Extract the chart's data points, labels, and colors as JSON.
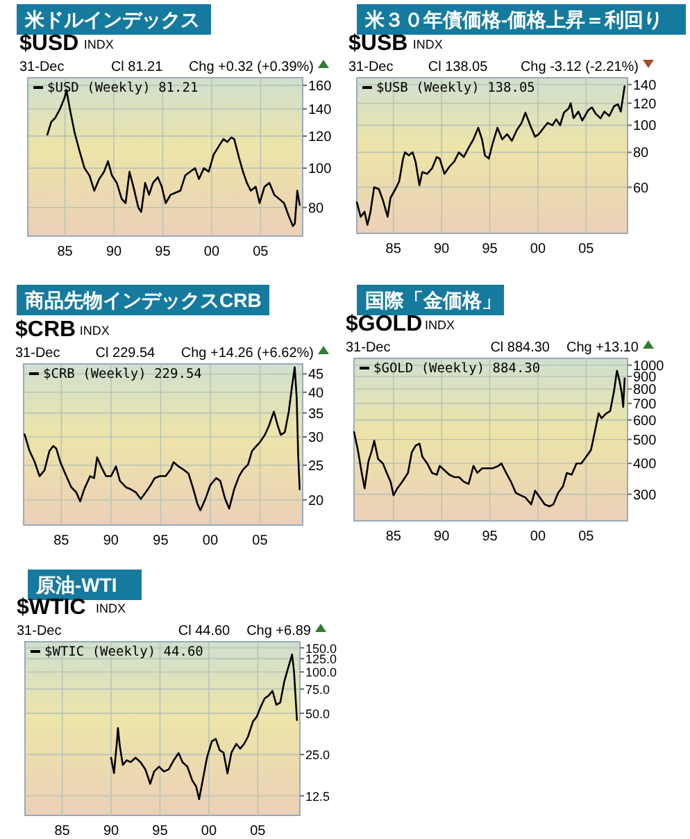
{
  "chart_data": [
    {
      "type": "line",
      "title": "米ドルインデックス",
      "annotations": [
        "$USD",
        "INDX",
        "31-Dec",
        "Cl 81.21",
        "Chg +0.32 (+0.39%)"
      ],
      "log": "y",
      "grid": true,
      "legend": "top left",
      "xlim": [
        1981.2,
        2009.3
      ],
      "xticks": [
        {
          "value": 1985,
          "label": "85"
        },
        {
          "value": 1990,
          "label": "90"
        },
        {
          "value": 1995,
          "label": "95"
        },
        {
          "value": 2000,
          "label": "00"
        },
        {
          "value": 2005,
          "label": "05"
        }
      ],
      "ylim": [
        68,
        167
      ],
      "yticks": [
        80,
        100,
        120,
        140,
        160
      ],
      "series": [
        {
          "name": "$USD (Weekly) 81.21",
          "color": "#000000",
          "x": [
            1983.2,
            1983.6,
            1984.0,
            1984.5,
            1985.0,
            1985.15,
            1985.5,
            1986.0,
            1986.5,
            1987.0,
            1987.5,
            1988.0,
            1988.5,
            1989.0,
            1989.4,
            1989.8,
            1990.3,
            1990.8,
            1991.2,
            1991.6,
            1992.0,
            1992.5,
            1992.8,
            1993.2,
            1993.6,
            1994.0,
            1994.5,
            1994.9,
            1995.3,
            1995.8,
            1996.3,
            1996.8,
            1997.3,
            1997.8,
            1998.3,
            1998.7,
            1999.2,
            1999.7,
            2000.2,
            2000.8,
            2001.2,
            2001.6,
            2002.0,
            2002.3,
            2002.8,
            2003.2,
            2003.6,
            2004.0,
            2004.5,
            2004.9,
            2005.4,
            2005.9,
            2006.4,
            2006.9,
            2007.4,
            2007.9,
            2008.3,
            2008.5,
            2008.75,
            2009.0
          ],
          "values": [
            121,
            130,
            133,
            140,
            150,
            156,
            140,
            122,
            110,
            100,
            96,
            88,
            94,
            98,
            104,
            96,
            92,
            84,
            82,
            98,
            90,
            80,
            78,
            92,
            86,
            92,
            95,
            90,
            82,
            86,
            87,
            88,
            96,
            98,
            100,
            94,
            100,
            98,
            108,
            114,
            118,
            116,
            119,
            118,
            106,
            98,
            92,
            88,
            90,
            82,
            90,
            92,
            86,
            84,
            82,
            76,
            72,
            73,
            88,
            81.21
          ]
        }
      ]
    },
    {
      "type": "line",
      "title": "米３０年債価格-価格上昇＝利回り",
      "annotations": [
        "$USB",
        "INDX",
        "31-Dec",
        "Cl 138.05",
        "Chg -3.12 (-2.21%)"
      ],
      "log": "y",
      "grid": true,
      "legend": "top left",
      "xlim": [
        1981.2,
        2009.3
      ],
      "xticks": [
        {
          "value": 1985,
          "label": "85"
        },
        {
          "value": 1990,
          "label": "90"
        },
        {
          "value": 1995,
          "label": "95"
        },
        {
          "value": 2000,
          "label": "00"
        },
        {
          "value": 2005,
          "label": "05"
        }
      ],
      "ylim": [
        41,
        148
      ],
      "yticks": [
        60,
        80,
        100,
        120,
        140
      ],
      "series": [
        {
          "name": "$USB (Weekly) 138.05",
          "color": "#000000",
          "x": [
            1981.2,
            1981.6,
            1982.0,
            1982.3,
            1982.6,
            1983.0,
            1983.5,
            1983.9,
            1984.4,
            1984.7,
            1985.2,
            1985.6,
            1986.0,
            1986.2,
            1986.6,
            1987.0,
            1987.3,
            1987.7,
            1988.0,
            1988.5,
            1989.0,
            1989.5,
            1989.8,
            1990.3,
            1990.8,
            1991.3,
            1991.8,
            1992.3,
            1992.8,
            1993.3,
            1993.8,
            1994.2,
            1994.5,
            1994.9,
            1995.3,
            1995.8,
            1996.3,
            1996.8,
            1997.3,
            1997.8,
            1998.3,
            1998.7,
            1999.2,
            1999.7,
            2000.1,
            2000.6,
            2001.0,
            2001.5,
            2001.9,
            2002.3,
            2002.7,
            2003.2,
            2003.4,
            2003.7,
            2004.2,
            2004.6,
            2005.2,
            2005.6,
            2006.0,
            2006.5,
            2006.9,
            2007.4,
            2007.9,
            2008.3,
            2008.6,
            2008.9,
            2009.0
          ],
          "values": [
            53,
            47,
            49,
            44,
            48.5,
            60,
            59,
            54,
            47,
            55,
            59,
            63,
            76,
            80,
            78,
            80,
            74,
            61,
            68,
            67,
            70,
            77,
            76,
            67,
            71,
            74,
            80,
            77,
            83,
            89,
            98,
            89,
            78,
            76,
            86,
            98,
            89,
            93,
            88,
            96,
            102,
            111,
            100,
            91,
            93,
            98,
            102,
            100,
            105,
            100,
            111,
            115,
            120,
            106,
            112,
            104,
            113,
            116,
            110,
            106,
            112,
            108,
            117,
            119,
            112,
            131,
            138.05
          ]
        }
      ]
    },
    {
      "type": "line",
      "title": "商品先物インデックスCRB",
      "annotations": [
        "$CRB",
        "INDX",
        "31-Dec",
        "Cl 229.54",
        "Chg +14.26 (+6.62%)"
      ],
      "log": "y",
      "grid": true,
      "legend": "top left",
      "xlim": [
        1981.2,
        2009.3
      ],
      "xticks": [
        {
          "value": 1985,
          "label": "85"
        },
        {
          "value": 1990,
          "label": "90"
        },
        {
          "value": 1995,
          "label": "95"
        },
        {
          "value": 2000,
          "label": "00"
        },
        {
          "value": 2005,
          "label": "05"
        }
      ],
      "ylim": [
        17,
        48
      ],
      "yticks": [
        20,
        25,
        30,
        35,
        40,
        45
      ],
      "series": [
        {
          "name": "$CRB (Weekly) 229.54",
          "color": "#000000",
          "x": [
            1981.3,
            1981.8,
            1982.3,
            1982.8,
            1983.3,
            1983.8,
            1984.2,
            1984.5,
            1984.9,
            1985.5,
            1986.0,
            1986.5,
            1986.9,
            1987.3,
            1987.9,
            1988.3,
            1988.6,
            1989.0,
            1989.5,
            1990.0,
            1990.5,
            1990.9,
            1991.5,
            1992.0,
            1992.5,
            1993.0,
            1993.5,
            1994.0,
            1994.4,
            1994.9,
            1995.5,
            1996.0,
            1996.3,
            1996.8,
            1997.3,
            1997.8,
            1998.3,
            1998.7,
            1999.0,
            1999.5,
            2000.0,
            2000.6,
            2001.0,
            2001.5,
            2001.9,
            2002.4,
            2002.9,
            2003.3,
            2003.8,
            2004.2,
            2004.6,
            2005.0,
            2005.5,
            2005.9,
            2006.4,
            2006.8,
            2007.1,
            2007.5,
            2007.9,
            2008.2,
            2008.5,
            2008.7,
            2008.85,
            2009.0
          ],
          "values": [
            30.5,
            27.4,
            25.6,
            23.3,
            24.2,
            27.4,
            28.3,
            27.8,
            25.5,
            23.3,
            21.7,
            21.0,
            19.8,
            21.4,
            23.3,
            23.0,
            26.3,
            24.8,
            23.3,
            23.3,
            24.8,
            22.6,
            21.7,
            21.4,
            21.0,
            20.1,
            21.0,
            22.0,
            23.0,
            23.3,
            23.3,
            24.3,
            25.5,
            24.8,
            24.3,
            23.7,
            21.4,
            19.5,
            18.7,
            20.1,
            22.0,
            23.0,
            22.6,
            20.1,
            18.9,
            21.4,
            23.3,
            24.3,
            25.1,
            27.4,
            28.2,
            29.0,
            30.4,
            32.2,
            35.3,
            32.2,
            30.4,
            30.9,
            35.3,
            41.0,
            47.0,
            38.6,
            26.6,
            21.4
          ]
        }
      ]
    },
    {
      "type": "line",
      "title": "国際「金価格」",
      "annotations": [
        "$GOLD",
        "INDX",
        "31-Dec",
        "Cl 884.30",
        "Chg +13.10"
      ],
      "log": "y",
      "grid": true,
      "legend": "top left",
      "xlim": [
        1980.9,
        2009.3
      ],
      "xticks": [
        {
          "value": 1985,
          "label": "85"
        },
        {
          "value": 1990,
          "label": "90"
        },
        {
          "value": 1995,
          "label": "95"
        },
        {
          "value": 2000,
          "label": "00"
        },
        {
          "value": 2005,
          "label": "05"
        }
      ],
      "ylim": [
        234,
        1065
      ],
      "yticks": [
        300,
        400,
        500,
        600,
        700,
        800,
        900,
        1000
      ],
      "series": [
        {
          "name": "$GOLD (Weekly) 884.30",
          "color": "#000000",
          "x": [
            1980.9,
            1981.3,
            1981.7,
            1982.0,
            1982.4,
            1982.7,
            1983.0,
            1983.4,
            1983.9,
            1984.3,
            1984.7,
            1985.0,
            1985.4,
            1985.9,
            1986.5,
            1986.9,
            1987.3,
            1987.7,
            1988.0,
            1988.5,
            1989.0,
            1989.5,
            1989.8,
            1990.3,
            1990.8,
            1991.3,
            1991.8,
            1992.3,
            1992.8,
            1993.3,
            1993.7,
            1994.2,
            1994.8,
            1995.3,
            1995.9,
            1996.2,
            1996.7,
            1997.2,
            1997.7,
            1998.2,
            1998.7,
            1999.3,
            1999.7,
            2000.2,
            2000.7,
            2001.2,
            2001.6,
            2002.1,
            2002.6,
            2003.0,
            2003.5,
            2004.0,
            2004.5,
            2005.0,
            2005.5,
            2005.9,
            2006.3,
            2006.6,
            2007.1,
            2007.5,
            2007.9,
            2008.2,
            2008.45,
            2008.7,
            2008.85,
            2009.0
          ],
          "values": [
            536,
            453,
            366,
            317,
            408,
            444,
            494,
            417,
            400,
            366,
            337,
            297,
            317,
            337,
            366,
            444,
            472,
            481,
            425,
            400,
            366,
            360,
            391,
            375,
            360,
            352,
            352,
            337,
            330,
            391,
            366,
            382,
            382,
            382,
            391,
            400,
            366,
            337,
            304,
            297,
            291,
            273,
            310,
            291,
            273,
            268,
            273,
            304,
            323,
            366,
            360,
            400,
            400,
            425,
            453,
            536,
            638,
            610,
            638,
            652,
            785,
            949,
            871,
            770,
            677,
            884
          ]
        }
      ]
    },
    {
      "type": "line",
      "title": "原油-WTI",
      "annotations": [
        "$WTIC",
        "INDX",
        "31-Dec",
        "Cl 44.60",
        "Chg +6.89"
      ],
      "log": "y",
      "grid": true,
      "legend": "top left",
      "xlim": [
        1981.2,
        2009.3
      ],
      "xticks": [
        {
          "value": 1985,
          "label": "85"
        },
        {
          "value": 1990,
          "label": "90"
        },
        {
          "value": 1995,
          "label": "95"
        },
        {
          "value": 2000,
          "label": "00"
        },
        {
          "value": 2005,
          "label": "05"
        }
      ],
      "ylim": [
        9,
        166
      ],
      "yticks": [
        {
          "value": 12.5,
          "label": "12.5"
        },
        {
          "value": 25,
          "label": "25.0"
        },
        {
          "value": 50,
          "label": "50.0"
        },
        {
          "value": 75,
          "label": "75.0"
        },
        {
          "value": 100,
          "label": "100.0"
        },
        {
          "value": 125,
          "label": "125.0"
        },
        {
          "value": 150,
          "label": "150.0"
        }
      ],
      "series": [
        {
          "name": "$WTIC (Weekly) 44.60",
          "color": "#000000",
          "x": [
            1990.0,
            1990.3,
            1990.6,
            1990.7,
            1990.9,
            1991.2,
            1991.6,
            1992.0,
            1992.5,
            1993.0,
            1993.5,
            1994.0,
            1994.4,
            1994.9,
            1995.4,
            1995.9,
            1996.4,
            1996.9,
            1997.3,
            1997.8,
            1998.3,
            1998.7,
            1999.0,
            1999.3,
            1999.8,
            2000.3,
            2000.7,
            2001.1,
            2001.5,
            2001.9,
            2002.3,
            2002.8,
            2003.2,
            2003.6,
            2004.0,
            2004.5,
            2004.9,
            2005.3,
            2005.7,
            2006.1,
            2006.5,
            2006.9,
            2007.3,
            2007.7,
            2008.0,
            2008.5,
            2008.7,
            2008.85,
            2009.0
          ],
          "values": [
            23.7,
            18.3,
            31,
            39,
            28.6,
            21,
            22.7,
            22.0,
            23.7,
            22,
            19.5,
            15.3,
            18.8,
            20.4,
            18.8,
            19.5,
            22.7,
            25.6,
            22,
            20.4,
            16.2,
            14.6,
            11.8,
            15.3,
            23.7,
            31.2,
            32.5,
            26.9,
            25.8,
            18.2,
            25.8,
            29.9,
            27.6,
            29.9,
            33.8,
            43.5,
            47.3,
            55.8,
            64.2,
            67.2,
            72.6,
            57.6,
            60,
            85,
            101,
            134,
            101,
            67,
            44.6
          ]
        }
      ]
    }
  ]
}
